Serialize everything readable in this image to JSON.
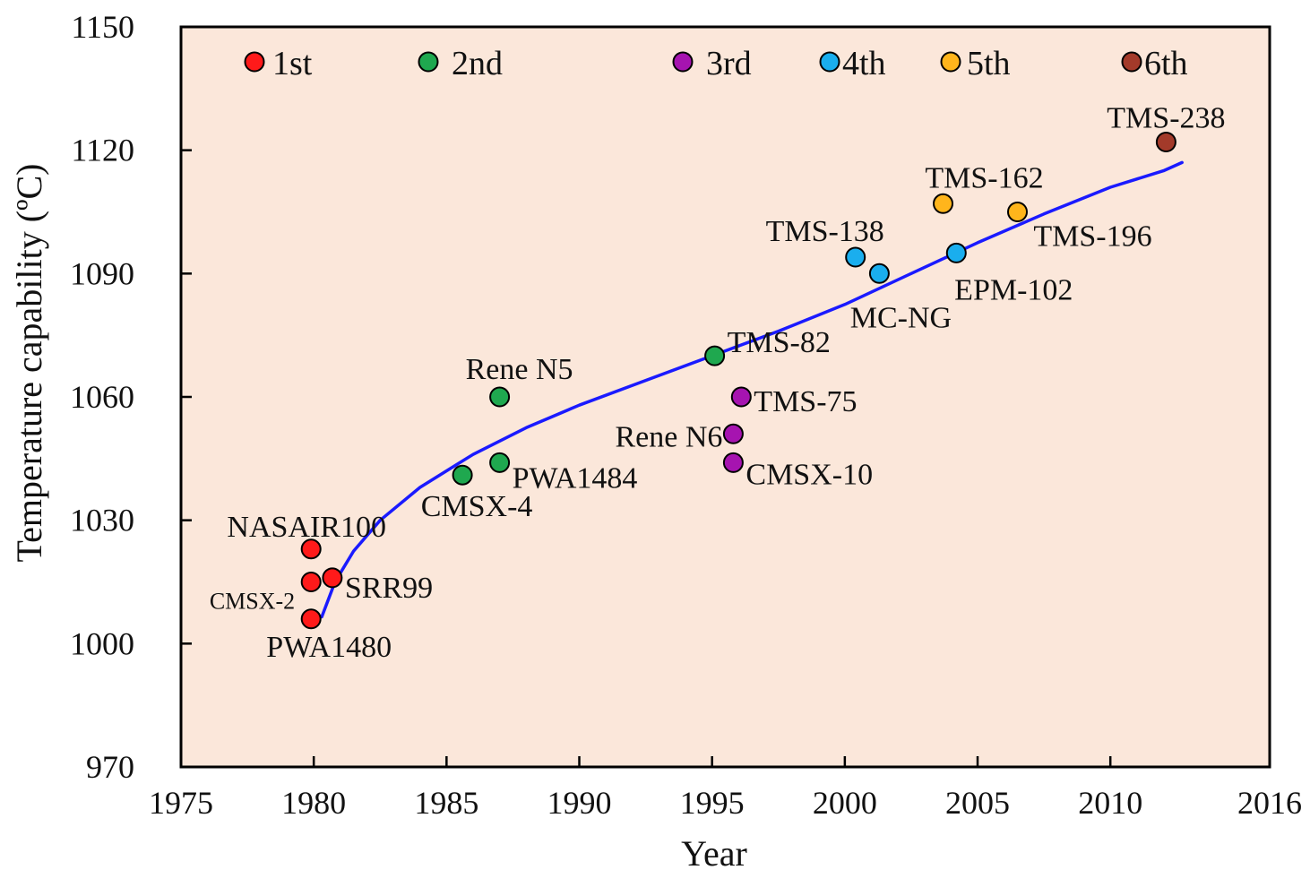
{
  "chart_data": {
    "type": "scatter",
    "title": "",
    "xlabel": "Year",
    "ylabel": "Temperature capability (ºC)",
    "xlim": [
      1975,
      2016
    ],
    "ylim": [
      970,
      1150
    ],
    "xticks": [
      1975,
      1980,
      1985,
      1990,
      1995,
      2000,
      2005,
      2010,
      2016
    ],
    "yticks": [
      970,
      1000,
      1030,
      1060,
      1090,
      1120,
      1150
    ],
    "x_tick_labels": [
      "1975",
      "1980",
      "1985",
      "1990",
      "1995",
      "2000",
      "2005",
      "2010",
      "2016"
    ],
    "y_tick_labels": [
      "970",
      "1000",
      "1030",
      "1060",
      "1090",
      "1120",
      "1150"
    ],
    "grid": false,
    "legend_placement": "top",
    "plot_background": "#fbe7da",
    "legend": [
      {
        "name": "1st",
        "color": "#ff1a1a"
      },
      {
        "name": "2nd",
        "color": "#1fa84f"
      },
      {
        "name": "3rd",
        "color": "#a614b0"
      },
      {
        "name": "4th",
        "color": "#1aaeee"
      },
      {
        "name": "5th",
        "color": "#ffb51c"
      },
      {
        "name": "6th",
        "color": "#a33a2a"
      }
    ],
    "series": [
      {
        "name": "1st",
        "color": "#ff1a1a",
        "points": [
          {
            "label": "NASAIR100",
            "x": 1979.9,
            "y": 1023
          },
          {
            "label": "CMSX-2",
            "x": 1979.9,
            "y": 1015
          },
          {
            "label": "SRR99",
            "x": 1980.7,
            "y": 1016
          },
          {
            "label": "PWA1480",
            "x": 1979.9,
            "y": 1006
          }
        ]
      },
      {
        "name": "2nd",
        "color": "#1fa84f",
        "points": [
          {
            "label": "Rene N5",
            "x": 1987,
            "y": 1060
          },
          {
            "label": "PWA1484",
            "x": 1987,
            "y": 1044
          },
          {
            "label": "CMSX-4",
            "x": 1985.6,
            "y": 1041
          },
          {
            "label": "TMS-82",
            "x": 1995.1,
            "y": 1070
          }
        ]
      },
      {
        "name": "3rd",
        "color": "#a614b0",
        "points": [
          {
            "label": "TMS-75",
            "x": 1996.1,
            "y": 1060
          },
          {
            "label": "Rene N6",
            "x": 1995.8,
            "y": 1051
          },
          {
            "label": "CMSX-10",
            "x": 1995.8,
            "y": 1044
          }
        ]
      },
      {
        "name": "4th",
        "color": "#1aaeee",
        "points": [
          {
            "label": "TMS-138",
            "x": 2000.4,
            "y": 1094
          },
          {
            "label": "MC-NG",
            "x": 2001.3,
            "y": 1090
          },
          {
            "label": "EPM-102",
            "x": 2004.2,
            "y": 1095
          }
        ]
      },
      {
        "name": "5th",
        "color": "#ffb51c",
        "points": [
          {
            "label": "TMS-162",
            "x": 2003.7,
            "y": 1107
          },
          {
            "label": "TMS-196",
            "x": 2006.5,
            "y": 1105
          }
        ]
      },
      {
        "name": "6th",
        "color": "#a33a2a",
        "points": [
          {
            "label": "TMS-238",
            "x": 2012.1,
            "y": 1122
          }
        ]
      }
    ],
    "trend_line": {
      "color": "#1a1aff",
      "points": [
        {
          "x": 1980.3,
          "y": 1006.5
        },
        {
          "x": 1980.8,
          "y": 1015
        },
        {
          "x": 1981.5,
          "y": 1022.5
        },
        {
          "x": 1982.5,
          "y": 1030
        },
        {
          "x": 1984,
          "y": 1038
        },
        {
          "x": 1986,
          "y": 1046
        },
        {
          "x": 1988,
          "y": 1052.5
        },
        {
          "x": 1990,
          "y": 1058
        },
        {
          "x": 1992.5,
          "y": 1064
        },
        {
          "x": 1995,
          "y": 1070
        },
        {
          "x": 1997.5,
          "y": 1076
        },
        {
          "x": 2000,
          "y": 1082.5
        },
        {
          "x": 2002.5,
          "y": 1090
        },
        {
          "x": 2005,
          "y": 1097.5
        },
        {
          "x": 2007.5,
          "y": 1104.5
        },
        {
          "x": 2010,
          "y": 1111
        },
        {
          "x": 2012,
          "y": 1115
        },
        {
          "x": 2012.7,
          "y": 1117
        }
      ]
    }
  }
}
